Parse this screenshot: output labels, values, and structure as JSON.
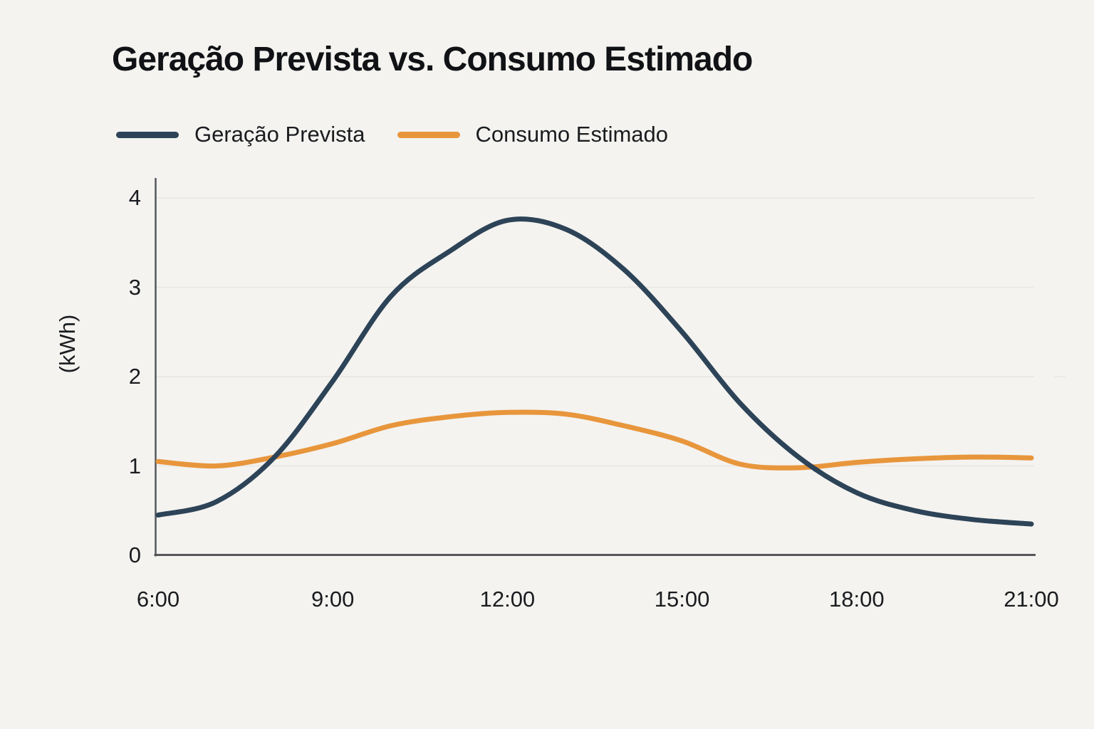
{
  "palette": {
    "background": "#f4f3f0",
    "gridline": "#e8e6e2",
    "axis": "#55575b",
    "title_text": "#101215",
    "tick_text": "#1a1c1f"
  },
  "chart_data": {
    "type": "line",
    "title": "Geração Prevista vs. Consumo Estimado",
    "xlabel": "",
    "ylabel": "(kWh)",
    "x": [
      "6:00",
      "7:00",
      "8:00",
      "9:00",
      "10:00",
      "11:00",
      "12:00",
      "13:00",
      "14:00",
      "15:00",
      "16:00",
      "17:00",
      "18:00",
      "19:00",
      "20:00",
      "21:00"
    ],
    "x_tick_indices": [
      0,
      3,
      6,
      9,
      12,
      15
    ],
    "x_tick_labels": [
      "6:00",
      "9:00",
      "12:00",
      "15:00",
      "18:00",
      "21:00"
    ],
    "y_ticks": [
      "0",
      "1",
      "2",
      "3",
      "4"
    ],
    "ylim": [
      0,
      4
    ],
    "grid": "horizontal",
    "legend_position": "top-left",
    "smooth": true,
    "series": [
      {
        "name": "Geração Prevista",
        "color": "#2d4357",
        "values": [
          0.45,
          0.6,
          1.1,
          1.95,
          2.9,
          3.4,
          3.75,
          3.65,
          3.2,
          2.5,
          1.7,
          1.1,
          0.7,
          0.5,
          0.4,
          0.35
        ]
      },
      {
        "name": "Consumo Estimado",
        "color": "#e8963c",
        "values": [
          1.05,
          1.0,
          1.1,
          1.25,
          1.45,
          1.55,
          1.6,
          1.58,
          1.45,
          1.28,
          1.02,
          0.98,
          1.04,
          1.08,
          1.1,
          1.09
        ]
      }
    ]
  }
}
